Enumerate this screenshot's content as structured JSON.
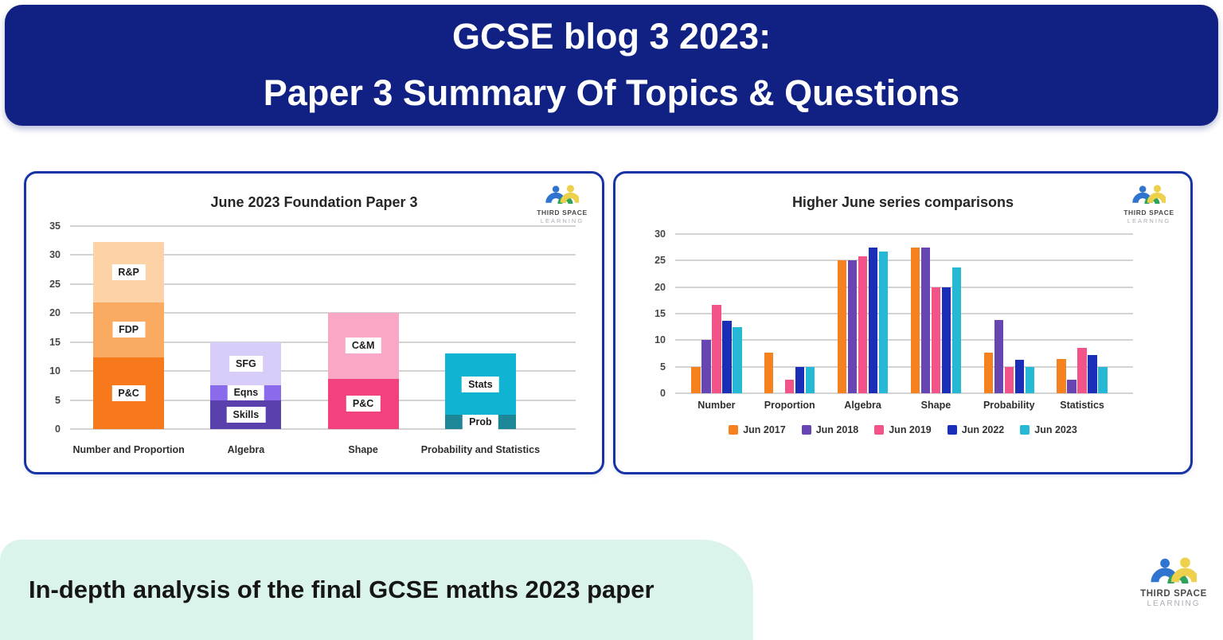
{
  "header": {
    "title_line1": "GCSE blog 3 2023:",
    "title_line2": "Paper 3 Summary Of Topics & Questions"
  },
  "branding": {
    "name": "THIRD SPACE",
    "tagline": "LEARNING"
  },
  "footer": {
    "banner_text": "In-depth analysis of the final GCSE maths 2023 paper"
  },
  "colors": {
    "header_background": "#102183",
    "panel_border": "#1734A6",
    "banner_background": "#DAF4EC",
    "logo_blue": "#2F74CE",
    "logo_green": "#2FA35B",
    "logo_yellow": "#EDD04B"
  },
  "chart_data": [
    {
      "type": "bar",
      "subtype": "stacked",
      "title": "June 2023 Foundation Paper 3",
      "categories": [
        "Number and Proportion",
        "Algebra",
        "Shape",
        "Probability and Statistics"
      ],
      "yticks": [
        0,
        5,
        10,
        15,
        20,
        25,
        30,
        35
      ],
      "ylim": [
        0,
        35
      ],
      "grid": true,
      "stacks": [
        [
          {
            "label": "P&C",
            "value": 12.4,
            "color": "#F8791C"
          },
          {
            "label": "FDP",
            "value": 9.4,
            "color": "#FAAA61"
          },
          {
            "label": "R&P",
            "value": 10.5,
            "color": "#FCD2A6"
          }
        ],
        [
          {
            "label": "Skills",
            "value": 5,
            "color": "#5940AC"
          },
          {
            "label": "Eqns",
            "value": 2.6,
            "color": "#8A6BEB"
          },
          {
            "label": "SFG",
            "value": 7.4,
            "color": "#D8CCF9"
          }
        ],
        [
          {
            "label": "P&C",
            "value": 8.7,
            "color": "#F2417E"
          },
          {
            "label": "C&M",
            "value": 11.3,
            "color": "#F8A8C6"
          }
        ],
        [
          {
            "label": "Prob",
            "value": 2.5,
            "color": "#1D8798"
          },
          {
            "label": "Stats",
            "value": 10.5,
            "color": "#10B4D2"
          }
        ]
      ]
    },
    {
      "type": "bar",
      "subtype": "grouped",
      "title": "Higher June series comparisons",
      "categories": [
        "Number",
        "Proportion",
        "Algebra",
        "Shape",
        "Probability",
        "Statistics"
      ],
      "yticks": [
        0,
        5,
        10,
        15,
        20,
        25,
        30
      ],
      "ylim": [
        0,
        30
      ],
      "grid": true,
      "legend_position": "bottom",
      "series": [
        {
          "name": "Jun 2017",
          "color": "#F5821F",
          "values": [
            5,
            7.6,
            25,
            27.5,
            7.6,
            6.4
          ]
        },
        {
          "name": "Jun 2018",
          "color": "#6745B2",
          "values": [
            10,
            0,
            25,
            27.5,
            13.8,
            2.5
          ]
        },
        {
          "name": "Jun 2019",
          "color": "#F25489",
          "values": [
            16.7,
            2.5,
            25.8,
            20,
            5,
            8.5
          ]
        },
        {
          "name": "Jun 2022",
          "color": "#1B2EB8",
          "values": [
            13.7,
            5,
            27.4,
            20,
            6.3,
            7.2
          ]
        },
        {
          "name": "Jun 2023",
          "color": "#25B9D6",
          "values": [
            12.5,
            5,
            26.7,
            23.7,
            5,
            5
          ]
        }
      ]
    }
  ]
}
